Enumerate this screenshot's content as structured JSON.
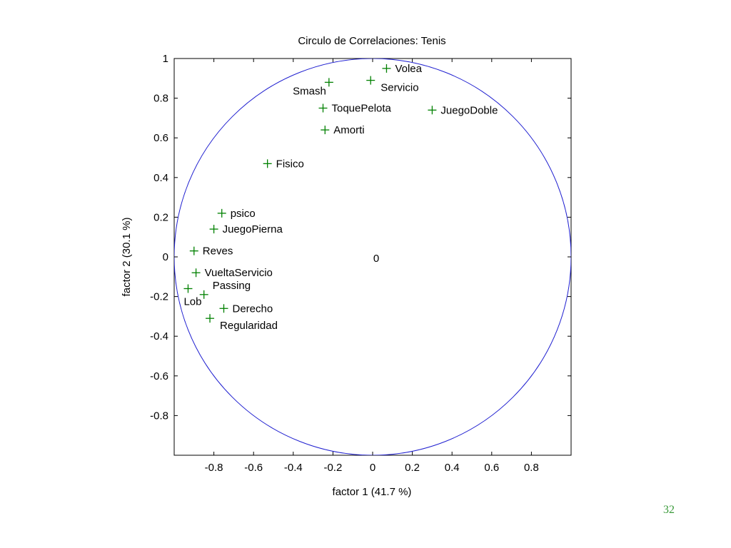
{
  "slide": {
    "number": "32"
  },
  "colors": {
    "circle": "#1f1fd0",
    "marker": "#008000",
    "axes": "#000000",
    "slide_number": "#3a9a3a"
  },
  "chart_data": {
    "type": "scatter",
    "title": "Circulo de Correlaciones: Tenis",
    "xlabel": "factor  1  (41.7 %)",
    "ylabel": "factor  2  (30.1 %)",
    "xlim": [
      -1,
      1
    ],
    "ylim": [
      -1,
      1
    ],
    "xticks": [
      "-0.8",
      "-0.6",
      "-0.4",
      "-0.2",
      "0",
      "0.2",
      "0.4",
      "0.6",
      "0.8"
    ],
    "yticks": [
      "1",
      "0.8",
      "0.6",
      "0.4",
      "0.2",
      "0",
      "-0.2",
      "-0.4",
      "-0.6",
      "-0.8"
    ],
    "grid": false,
    "legend": "none",
    "unit_circle": true,
    "origin_label": "0",
    "points": [
      {
        "label": "Volea",
        "x": 0.07,
        "y": 0.95,
        "label_side": "right"
      },
      {
        "label": "Servicio",
        "x": -0.01,
        "y": 0.89,
        "label_side": "below-right"
      },
      {
        "label": "Smash",
        "x": -0.22,
        "y": 0.88,
        "label_side": "below-left"
      },
      {
        "label": "ToquePelota",
        "x": -0.25,
        "y": 0.75,
        "label_side": "right"
      },
      {
        "label": "JuegoDoble",
        "x": 0.3,
        "y": 0.74,
        "label_side": "right"
      },
      {
        "label": "Amorti",
        "x": -0.24,
        "y": 0.64,
        "label_side": "right"
      },
      {
        "label": "Fisico",
        "x": -0.53,
        "y": 0.47,
        "label_side": "right"
      },
      {
        "label": "psico",
        "x": -0.76,
        "y": 0.22,
        "label_side": "right"
      },
      {
        "label": "JuegoPierna",
        "x": -0.8,
        "y": 0.14,
        "label_side": "right"
      },
      {
        "label": "Reves",
        "x": -0.9,
        "y": 0.03,
        "label_side": "right"
      },
      {
        "label": "VueltaServicio",
        "x": -0.89,
        "y": -0.08,
        "label_side": "right"
      },
      {
        "label": "Passing",
        "x": -0.85,
        "y": -0.19,
        "label_side": "above-right"
      },
      {
        "label": "Lob",
        "x": -0.93,
        "y": -0.16,
        "label_side": "below"
      },
      {
        "label": "Derecho",
        "x": -0.75,
        "y": -0.26,
        "label_side": "right"
      },
      {
        "label": "Regularidad",
        "x": -0.82,
        "y": -0.31,
        "label_side": "below-right"
      }
    ]
  }
}
